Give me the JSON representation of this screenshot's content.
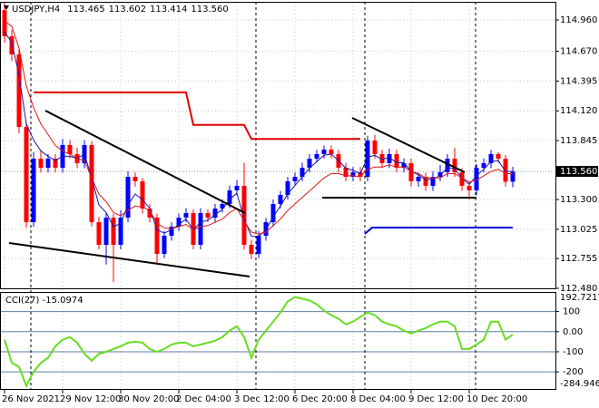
{
  "chart_data": [
    {
      "type": "candlestick",
      "title": "USDJPY,H4",
      "header_values": [
        "113.465",
        "113.602",
        "113.414",
        "113.560"
      ],
      "open": [
        115.05,
        114.809,
        114.642,
        113.971,
        113.091,
        113.678,
        113.594,
        113.678,
        113.594,
        113.804,
        113.72,
        113.636,
        113.804,
        113.091,
        112.882,
        113.133,
        112.882,
        113.133,
        113.51,
        113.469,
        113.217,
        113.133,
        112.798,
        112.966,
        113.05,
        113.133,
        113.175,
        112.882,
        113.175,
        113.133,
        113.217,
        113.259,
        113.385,
        113.427,
        112.882,
        112.798,
        112.966,
        113.091,
        113.259,
        113.343,
        113.469,
        113.51,
        113.594,
        113.678,
        113.72,
        113.762,
        113.72,
        113.594,
        113.51,
        113.552,
        113.51,
        113.846,
        113.72,
        113.636,
        113.72,
        113.594,
        113.636,
        113.469,
        113.51,
        113.427,
        113.51,
        113.552,
        113.678,
        113.552,
        113.427,
        113.385,
        113.594,
        113.636,
        113.72,
        113.678,
        113.465
      ],
      "high": [
        115.12,
        114.87,
        114.7,
        114.02,
        113.74,
        113.76,
        113.72,
        113.72,
        113.86,
        113.85,
        113.78,
        113.85,
        113.84,
        113.14,
        113.18,
        113.17,
        113.2,
        113.56,
        113.55,
        113.5,
        113.26,
        113.17,
        113.01,
        113.09,
        113.17,
        113.22,
        113.21,
        113.22,
        113.21,
        113.26,
        113.3,
        113.43,
        113.48,
        113.64,
        112.93,
        113.01,
        113.13,
        113.3,
        113.38,
        113.51,
        113.55,
        113.64,
        113.72,
        113.76,
        113.8,
        113.8,
        113.76,
        113.64,
        113.6,
        113.6,
        113.89,
        113.9,
        113.76,
        113.77,
        113.76,
        113.68,
        113.68,
        113.55,
        113.55,
        113.56,
        113.62,
        113.72,
        113.78,
        113.59,
        113.47,
        113.63,
        113.68,
        113.76,
        113.74,
        113.71,
        113.602
      ],
      "low": [
        114.75,
        114.58,
        113.91,
        113.04,
        113.05,
        113.55,
        113.55,
        113.55,
        113.55,
        113.68,
        113.59,
        113.59,
        113.05,
        112.84,
        112.7,
        112.54,
        112.84,
        113.09,
        113.42,
        113.17,
        113.09,
        112.7,
        112.76,
        112.92,
        113.01,
        113.09,
        112.84,
        112.84,
        113.09,
        113.09,
        113.18,
        113.22,
        113.34,
        112.84,
        112.75,
        112.76,
        112.92,
        113.05,
        113.22,
        113.3,
        113.43,
        113.47,
        113.55,
        113.64,
        113.68,
        113.68,
        113.55,
        113.47,
        113.47,
        113.47,
        113.47,
        113.68,
        113.59,
        113.59,
        113.55,
        113.55,
        113.42,
        113.42,
        113.38,
        113.38,
        113.47,
        113.51,
        113.51,
        113.38,
        113.3,
        113.34,
        113.55,
        113.59,
        113.64,
        113.42,
        113.414
      ],
      "close": [
        114.809,
        114.642,
        113.971,
        113.091,
        113.678,
        113.594,
        113.678,
        113.594,
        113.804,
        113.72,
        113.636,
        113.804,
        113.091,
        112.882,
        113.133,
        112.882,
        113.133,
        113.51,
        113.469,
        113.217,
        113.133,
        112.798,
        112.966,
        113.05,
        113.133,
        113.175,
        112.882,
        113.175,
        113.133,
        113.217,
        113.259,
        113.385,
        113.427,
        112.882,
        112.798,
        112.966,
        113.091,
        113.259,
        113.343,
        113.469,
        113.51,
        113.594,
        113.678,
        113.72,
        113.762,
        113.72,
        113.594,
        113.51,
        113.552,
        113.51,
        113.846,
        113.72,
        113.636,
        113.72,
        113.594,
        113.636,
        113.469,
        113.51,
        113.427,
        113.51,
        113.552,
        113.678,
        113.552,
        113.427,
        113.385,
        113.594,
        113.636,
        113.72,
        113.678,
        113.465,
        113.56
      ],
      "bull_color": "#0000ff",
      "bear_color": "#ff0000",
      "lines": [
        {
          "color": "#1a1aa8",
          "values": [
            114.85,
            114.75,
            114.45,
            114.0,
            113.85,
            113.75,
            113.7,
            113.66,
            113.7,
            113.7,
            113.68,
            113.72,
            113.5,
            113.25,
            113.18,
            113.05,
            113.08,
            113.25,
            113.35,
            113.3,
            113.22,
            113.02,
            112.99,
            113.02,
            113.07,
            113.12,
            113.02,
            113.09,
            113.11,
            113.16,
            113.21,
            113.3,
            113.36,
            113.12,
            112.96,
            112.96,
            113.02,
            113.14,
            113.24,
            113.35,
            113.43,
            113.51,
            113.59,
            113.65,
            113.71,
            113.72,
            113.66,
            113.59,
            113.57,
            113.54,
            113.69,
            113.71,
            113.67,
            113.69,
            113.64,
            113.64,
            113.56,
            113.53,
            113.48,
            113.49,
            113.52,
            113.6,
            113.58,
            113.5,
            113.44,
            113.52,
            113.58,
            113.65,
            113.66,
            113.56,
            113.56
          ]
        },
        {
          "color": "#e01818",
          "values": [
            114.95,
            114.9,
            114.7,
            114.35,
            114.15,
            114.0,
            113.9,
            113.8,
            113.75,
            113.72,
            113.68,
            113.66,
            113.5,
            113.35,
            113.28,
            113.18,
            113.15,
            113.2,
            113.24,
            113.23,
            113.2,
            113.08,
            113.04,
            113.03,
            113.05,
            113.07,
            113.02,
            113.05,
            113.06,
            113.09,
            113.12,
            113.18,
            113.22,
            113.1,
            113.0,
            112.98,
            113.0,
            113.06,
            113.12,
            113.2,
            113.26,
            113.32,
            113.38,
            113.44,
            113.5,
            113.54,
            113.54,
            113.52,
            113.52,
            113.51,
            113.58,
            113.6,
            113.6,
            113.62,
            113.6,
            113.6,
            113.56,
            113.54,
            113.5,
            113.5,
            113.5,
            113.54,
            113.54,
            113.5,
            113.46,
            113.48,
            113.52,
            113.56,
            113.58,
            113.54,
            113.54
          ]
        },
        {
          "color": "#e00000",
          "values": [
            null,
            null,
            null,
            null,
            114.29,
            114.29,
            114.29,
            114.29,
            114.29,
            114.29,
            114.29,
            114.29,
            114.29,
            114.29,
            114.29,
            114.29,
            114.29,
            114.29,
            114.29,
            114.29,
            114.29,
            114.29,
            114.29,
            114.29,
            114.29,
            114.29,
            113.99,
            113.99,
            113.99,
            113.99,
            113.99,
            113.99,
            113.99,
            113.99,
            113.86,
            113.86,
            113.86,
            113.86,
            113.86,
            113.86,
            113.86,
            113.86,
            113.86,
            113.86,
            113.86,
            113.86,
            113.86,
            113.86,
            113.86,
            113.86,
            null,
            null,
            null,
            null,
            null,
            null,
            null,
            null,
            null,
            null,
            null,
            null,
            null,
            null,
            null,
            null,
            null,
            null,
            null,
            null,
            null
          ]
        }
      ],
      "xlim": [
        0,
        76
      ],
      "ylim": [
        112.48,
        115.144
      ],
      "yticks": [
        {
          "value": 114.96,
          "label": "114.960"
        },
        {
          "value": 114.67,
          "label": "114.670"
        },
        114.395,
        {
          "value": 114.12,
          "label": "114.120"
        },
        113.845,
        {
          "value": 113.3,
          "label": "113.300"
        },
        113.025,
        112.755,
        {
          "value": 112.48,
          "label": "112.480"
        }
      ],
      "xticks": [
        {
          "value": 0,
          "label": "26 Nov 2021"
        },
        {
          "value": 8,
          "label": "29 Nov 12:00"
        },
        {
          "value": 16,
          "label": "30 Nov 20:00"
        },
        {
          "value": 24,
          "label": "2 Dec 04:00"
        },
        {
          "value": 32,
          "label": "3 Dec 12:00"
        },
        {
          "value": 40,
          "label": "6 Dec 20:00"
        },
        {
          "value": 48,
          "label": "8 Dec 04:00"
        },
        {
          "value": 56,
          "label": "9 Dec 12:00"
        },
        {
          "value": 64,
          "label": "10 Dec 20:00"
        }
      ],
      "last_price": {
        "value": 113.56,
        "label": "113.560"
      },
      "grid": true
    },
    {
      "type": "line",
      "title": "CCI(27) -15.0974",
      "color": "#66dd22",
      "values": [
        -40,
        -155,
        -175,
        -270,
        -200,
        -155,
        -130,
        -73,
        -40,
        -27,
        -55,
        -110,
        -145,
        -110,
        -100,
        -86,
        -73,
        -55,
        -50,
        -55,
        -86,
        -100,
        -86,
        -64,
        -55,
        -55,
        -73,
        -64,
        -55,
        -45,
        -27,
        5,
        27,
        -27,
        -130,
        -40,
        5,
        50,
        95,
        150,
        172,
        164,
        155,
        136,
        105,
        82,
        64,
        36,
        50,
        73,
        95,
        82,
        50,
        36,
        27,
        5,
        -9,
        5,
        18,
        36,
        50,
        50,
        27,
        -86,
        -86,
        -64,
        -40,
        50,
        50,
        -40,
        -15.0974
      ],
      "xlim": [
        0,
        76
      ],
      "ylim": [
        -284.9462,
        192.7217
      ],
      "yticks": [
        100,
        {
          "value": 0,
          "label": "0.00"
        },
        -100,
        -200
      ],
      "grid": true
    }
  ]
}
